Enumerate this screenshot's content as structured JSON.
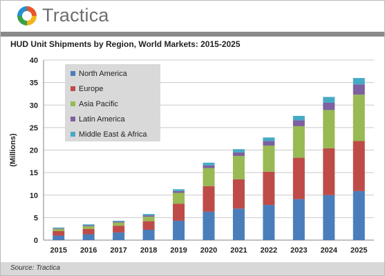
{
  "header": {
    "brand": "Tractica",
    "logo_colors": [
      "#e8562a",
      "#f4b41a",
      "#3aa14a",
      "#2a8fd0"
    ]
  },
  "footer": {
    "source": "Source: Tractica"
  },
  "chart_data": {
    "type": "bar",
    "stacked": true,
    "title": "HUD Unit Shipments by Region, World Markets: 2015-2025",
    "xlabel": "",
    "ylabel": "(Millions)",
    "ylim": [
      0,
      40
    ],
    "yticks": [
      "0",
      "5",
      "10",
      "15",
      "20",
      "25",
      "30",
      "35",
      "40"
    ],
    "grid": true,
    "legend_position": "top-left",
    "categories": [
      "2015",
      "2016",
      "2017",
      "2018",
      "2019",
      "2020",
      "2021",
      "2022",
      "2023",
      "2024",
      "2025"
    ],
    "series": [
      {
        "name": "North America",
        "color": "#4a7ebb",
        "values": [
          1.0,
          1.3,
          1.7,
          2.3,
          4.3,
          6.3,
          7.0,
          7.8,
          9.1,
          10.0,
          10.9
        ]
      },
      {
        "name": "Europe",
        "color": "#be4b48",
        "values": [
          1.0,
          1.2,
          1.5,
          1.9,
          3.8,
          5.7,
          6.5,
          7.4,
          9.2,
          10.4,
          11.1
        ]
      },
      {
        "name": "Asia Pacific",
        "color": "#98b954",
        "values": [
          0.5,
          0.6,
          0.7,
          1.0,
          2.4,
          4.0,
          5.2,
          5.8,
          7.0,
          8.5,
          10.3
        ]
      },
      {
        "name": "Latin America",
        "color": "#7d60a0",
        "values": [
          0.15,
          0.2,
          0.2,
          0.3,
          0.4,
          0.6,
          0.8,
          1.0,
          1.3,
          1.6,
          2.3
        ]
      },
      {
        "name": "Middle East & Africa",
        "color": "#46aac5",
        "values": [
          0.15,
          0.2,
          0.2,
          0.3,
          0.4,
          0.6,
          0.7,
          0.8,
          1.0,
          1.3,
          1.4
        ]
      }
    ]
  }
}
